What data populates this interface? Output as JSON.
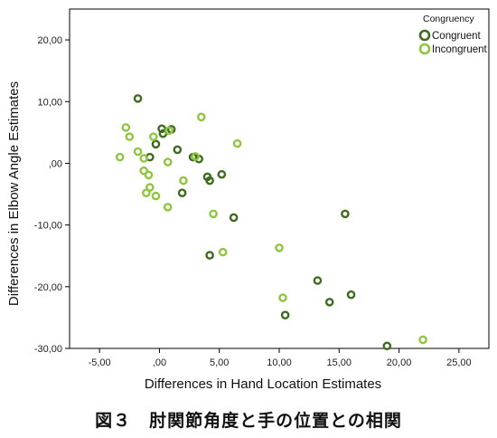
{
  "caption": "図３　肘関節角度と手の位置との相関",
  "chart_data": {
    "type": "scatter",
    "xlabel": "Differences in Hand Location Estimates",
    "ylabel": "Differences in Elbow Angle Estimates",
    "xlim": [
      -7.5,
      27.5
    ],
    "ylim": [
      -30,
      25
    ],
    "x_ticks": [
      -5,
      0,
      5,
      10,
      15,
      20,
      25
    ],
    "x_tick_labels": [
      "-5,00",
      ",00",
      "5,00",
      "10,00",
      "15,00",
      "20,00",
      "25,00"
    ],
    "y_ticks": [
      -30,
      -20,
      -10,
      0,
      10,
      20
    ],
    "y_tick_labels": [
      "-30,00",
      "-20,00",
      "-10,00",
      ",00",
      "10,00",
      "20,00"
    ],
    "grid": false,
    "legend": {
      "title": "Congruency",
      "placement": "top-right"
    },
    "series": [
      {
        "name": "Congruent",
        "color": "#3f6b1f",
        "points": [
          {
            "x": -1.8,
            "y": 10.5
          },
          {
            "x": 0.2,
            "y": 5.6
          },
          {
            "x": 1.0,
            "y": 5.5
          },
          {
            "x": 0.3,
            "y": 4.8
          },
          {
            "x": -0.3,
            "y": 3.1
          },
          {
            "x": -0.8,
            "y": 1.0
          },
          {
            "x": 1.5,
            "y": 2.2
          },
          {
            "x": 2.8,
            "y": 1.0
          },
          {
            "x": 3.3,
            "y": 0.7
          },
          {
            "x": 4.0,
            "y": -2.2
          },
          {
            "x": 4.2,
            "y": -2.8
          },
          {
            "x": 5.2,
            "y": -1.8
          },
          {
            "x": 1.9,
            "y": -4.8
          },
          {
            "x": 6.2,
            "y": -8.8
          },
          {
            "x": 4.2,
            "y": -14.9
          },
          {
            "x": 15.5,
            "y": -8.2
          },
          {
            "x": 13.2,
            "y": -19.0
          },
          {
            "x": 16.0,
            "y": -21.3
          },
          {
            "x": 14.2,
            "y": -22.5
          },
          {
            "x": 10.5,
            "y": -24.6
          },
          {
            "x": 19.0,
            "y": -29.6
          }
        ]
      },
      {
        "name": "Incongruent",
        "color": "#8ec63f",
        "points": [
          {
            "x": -2.8,
            "y": 5.8
          },
          {
            "x": -2.5,
            "y": 4.3
          },
          {
            "x": -0.5,
            "y": 4.3
          },
          {
            "x": 0.8,
            "y": 5.3
          },
          {
            "x": 3.5,
            "y": 7.5
          },
          {
            "x": 6.5,
            "y": 3.2
          },
          {
            "x": -1.8,
            "y": 1.9
          },
          {
            "x": -1.3,
            "y": 0.8
          },
          {
            "x": -3.3,
            "y": 1.0
          },
          {
            "x": 0.7,
            "y": 0.2
          },
          {
            "x": 3.0,
            "y": 1.1
          },
          {
            "x": -1.3,
            "y": -1.2
          },
          {
            "x": -0.9,
            "y": -1.9
          },
          {
            "x": 2.0,
            "y": -2.8
          },
          {
            "x": -0.8,
            "y": -3.9
          },
          {
            "x": -1.1,
            "y": -4.8
          },
          {
            "x": -0.3,
            "y": -5.3
          },
          {
            "x": 0.7,
            "y": -7.1
          },
          {
            "x": 4.5,
            "y": -8.2
          },
          {
            "x": 10.0,
            "y": -13.7
          },
          {
            "x": 5.3,
            "y": -14.4
          },
          {
            "x": 10.3,
            "y": -21.8
          },
          {
            "x": 22.0,
            "y": -28.6
          }
        ]
      }
    ]
  }
}
